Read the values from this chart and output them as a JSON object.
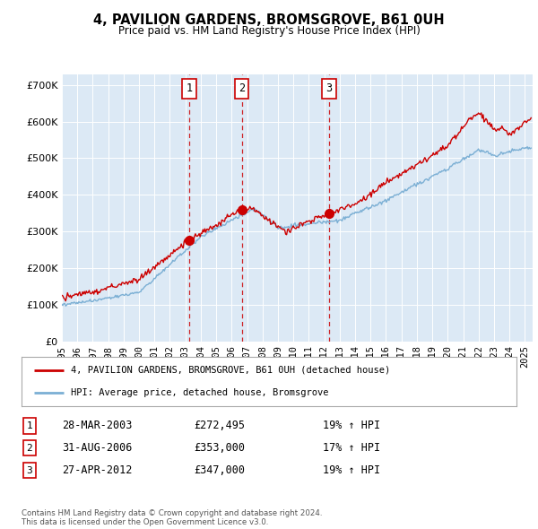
{
  "title": "4, PAVILION GARDENS, BROMSGROVE, B61 0UH",
  "subtitle": "Price paid vs. HM Land Registry's House Price Index (HPI)",
  "yticks": [
    0,
    100000,
    200000,
    300000,
    400000,
    500000,
    600000,
    700000
  ],
  "ytick_labels": [
    "£0",
    "£100K",
    "£200K",
    "£300K",
    "£400K",
    "£500K",
    "£600K",
    "£700K"
  ],
  "xlim_start": 1995.0,
  "xlim_end": 2025.5,
  "ylim": [
    0,
    730000
  ],
  "background_color": "#dce9f5",
  "outer_bg": "#ffffff",
  "sale_line_color": "#cc0000",
  "hpi_line_color": "#7bafd4",
  "vline_color": "#cc0000",
  "transactions": [
    {
      "label": "1",
      "date_num": 2003.24,
      "price": 272495
    },
    {
      "label": "2",
      "date_num": 2006.66,
      "price": 353000
    },
    {
      "label": "3",
      "date_num": 2012.32,
      "price": 347000
    }
  ],
  "transaction_table": [
    {
      "num": "1",
      "date": "28-MAR-2003",
      "price": "£272,495",
      "change": "19% ↑ HPI"
    },
    {
      "num": "2",
      "date": "31-AUG-2006",
      "price": "£353,000",
      "change": "17% ↑ HPI"
    },
    {
      "num": "3",
      "date": "27-APR-2012",
      "price": "£347,000",
      "change": "19% ↑ HPI"
    }
  ],
  "legend_entries": [
    "4, PAVILION GARDENS, BROMSGROVE, B61 0UH (detached house)",
    "HPI: Average price, detached house, Bromsgrove"
  ],
  "footnote": "Contains HM Land Registry data © Crown copyright and database right 2024.\nThis data is licensed under the Open Government Licence v3.0.",
  "xtick_years": [
    1995,
    1996,
    1997,
    1998,
    1999,
    2000,
    2001,
    2002,
    2003,
    2004,
    2005,
    2006,
    2007,
    2008,
    2009,
    2010,
    2011,
    2012,
    2013,
    2014,
    2015,
    2016,
    2017,
    2018,
    2019,
    2020,
    2021,
    2022,
    2023,
    2024,
    2025
  ]
}
